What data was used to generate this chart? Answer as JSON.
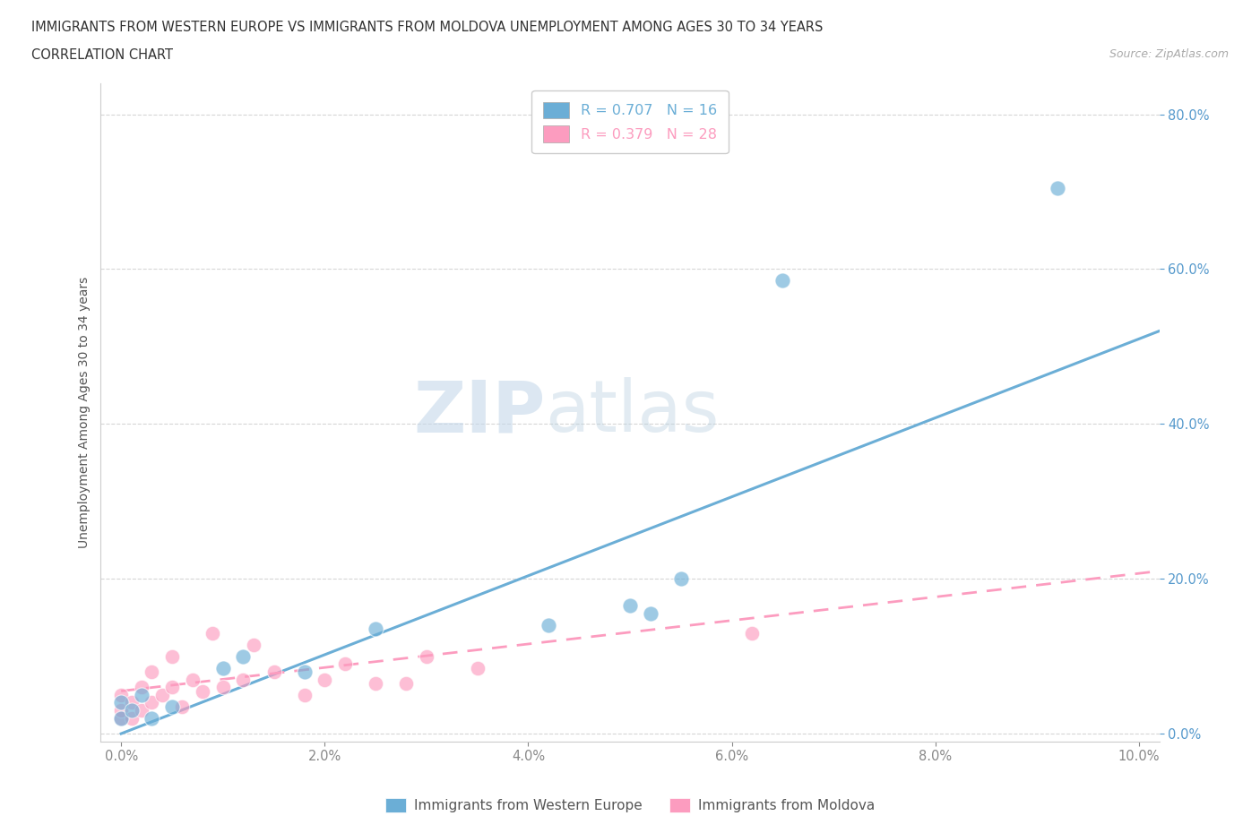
{
  "title": "IMMIGRANTS FROM WESTERN EUROPE VS IMMIGRANTS FROM MOLDOVA UNEMPLOYMENT AMONG AGES 30 TO 34 YEARS",
  "subtitle": "CORRELATION CHART",
  "source": "Source: ZipAtlas.com",
  "ylabel": "Unemployment Among Ages 30 to 34 years",
  "xlim": [
    -0.002,
    0.102
  ],
  "ylim": [
    -0.01,
    0.84
  ],
  "yticks": [
    0.0,
    0.2,
    0.4,
    0.6,
    0.8
  ],
  "xticks": [
    0.0,
    0.02,
    0.04,
    0.06,
    0.08,
    0.1
  ],
  "blue_R": "0.707",
  "blue_N": "16",
  "pink_R": "0.379",
  "pink_N": "28",
  "blue_color": "#6baed6",
  "pink_color": "#fc9cbf",
  "blue_label": "Immigrants from Western Europe",
  "pink_label": "Immigrants from Moldova",
  "watermark_ZIP": "ZIP",
  "watermark_atlas": "atlas",
  "blue_scatter_x": [
    0.0,
    0.0,
    0.001,
    0.002,
    0.003,
    0.005,
    0.01,
    0.012,
    0.018,
    0.025,
    0.042,
    0.05,
    0.052,
    0.055,
    0.065,
    0.092
  ],
  "blue_scatter_y": [
    0.02,
    0.04,
    0.03,
    0.05,
    0.02,
    0.035,
    0.085,
    0.1,
    0.08,
    0.135,
    0.14,
    0.165,
    0.155,
    0.2,
    0.585,
    0.705
  ],
  "pink_scatter_x": [
    0.0,
    0.0,
    0.0,
    0.001,
    0.001,
    0.002,
    0.002,
    0.003,
    0.003,
    0.004,
    0.005,
    0.005,
    0.006,
    0.007,
    0.008,
    0.009,
    0.01,
    0.012,
    0.013,
    0.015,
    0.018,
    0.02,
    0.022,
    0.025,
    0.028,
    0.03,
    0.035,
    0.062
  ],
  "pink_scatter_y": [
    0.02,
    0.03,
    0.05,
    0.02,
    0.04,
    0.03,
    0.06,
    0.04,
    0.08,
    0.05,
    0.06,
    0.1,
    0.035,
    0.07,
    0.055,
    0.13,
    0.06,
    0.07,
    0.115,
    0.08,
    0.05,
    0.07,
    0.09,
    0.065,
    0.065,
    0.1,
    0.085,
    0.13
  ],
  "blue_line_x": [
    0.0,
    0.102
  ],
  "blue_line_y": [
    0.0,
    0.52
  ],
  "pink_line_x": [
    0.0,
    0.102
  ],
  "pink_line_y": [
    0.055,
    0.21
  ],
  "grid_color": "#cccccc",
  "bg_color": "#ffffff",
  "tick_color_y": "#5599cc",
  "tick_color_x": "#888888"
}
